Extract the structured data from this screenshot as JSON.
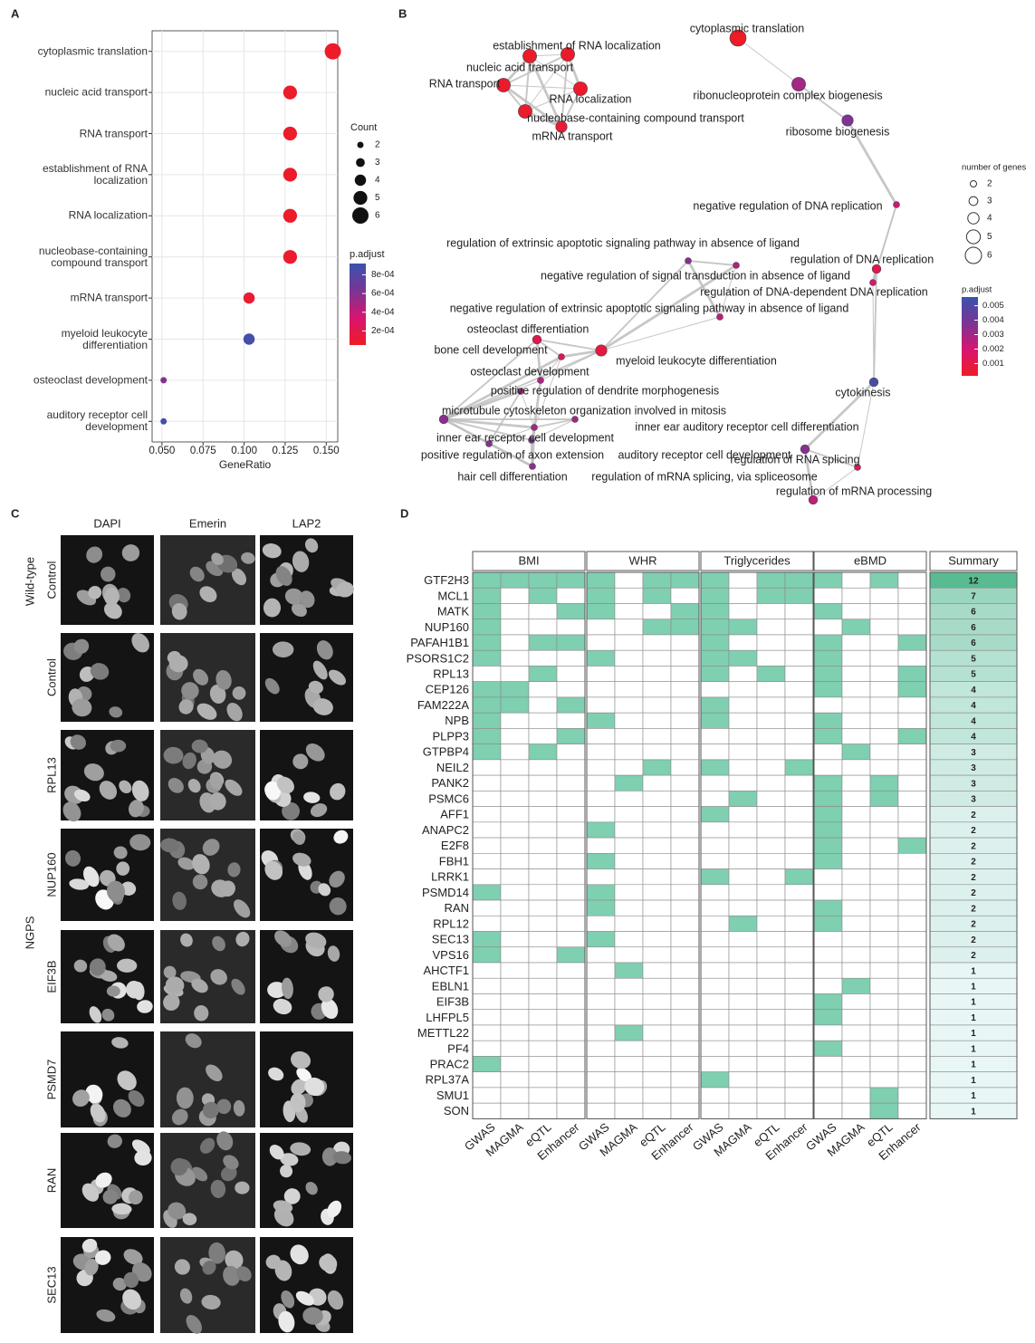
{
  "chart_data": {
    "type": "dot",
    "panel": "A",
    "categories": [
      "cytoplasmic translation",
      "nucleic acid transport",
      "RNA transport",
      "establishment of RNA localization",
      "RNA localization",
      "nucleobase-containing compound transport",
      "mRNA transport",
      "myeloid leukocyte differentiation",
      "osteoclast development",
      "auditory receptor cell development"
    ],
    "values": [
      0.154,
      0.128,
      0.128,
      0.128,
      0.128,
      0.128,
      0.103,
      0.103,
      0.051,
      0.051
    ],
    "count": [
      6,
      5,
      5,
      5,
      5,
      5,
      4,
      4,
      2,
      2
    ],
    "p_adjust": [
      6e-05,
      7e-05,
      7e-05,
      7e-05,
      7e-05,
      8e-05,
      0.0001,
      0.00088,
      0.0006,
      0.00088
    ],
    "xlabel": "GeneRatio",
    "xlim": [
      0.044,
      0.157
    ],
    "xticks": [
      {
        "value": 0.05,
        "label": "0.050"
      },
      {
        "value": 0.075,
        "label": "0.075"
      },
      {
        "value": 0.1,
        "label": "0.100"
      },
      {
        "value": 0.125,
        "label": "0.125"
      },
      {
        "value": 0.15,
        "label": "0.150"
      }
    ],
    "grid": true,
    "size_title": "Count",
    "size_ticks": [
      2,
      3,
      4,
      5,
      6
    ],
    "color_title": "p.adjust",
    "color_ticks": [
      {
        "value": 0.0008,
        "label": "8e-04"
      },
      {
        "value": 0.0006,
        "label": "6e-04"
      },
      {
        "value": 0.0004,
        "label": "4e-04"
      },
      {
        "value": 0.0002,
        "label": "2e-04"
      }
    ],
    "clim": [
      5e-05,
      0.00092
    ],
    "colors": [
      "#ee1c25",
      "#d8156f",
      "#7a3594",
      "#3b53ad"
    ]
  },
  "network": {
    "panel": "B",
    "nodes": [
      {
        "label": "cytoplasmic translation",
        "size": 6,
        "p_adjust": 0.0002
      },
      {
        "label": "establishment of RNA localization",
        "size": 5,
        "p_adjust": 0.0003
      },
      {
        "label": "nucleic acid transport",
        "size": 5,
        "p_adjust": 0.0003
      },
      {
        "label": "RNA transport",
        "size": 5,
        "p_adjust": 0.0003
      },
      {
        "label": "RNA localization",
        "size": 5,
        "p_adjust": 0.0003
      },
      {
        "label": "nucleobase-containing compound transport",
        "size": 5,
        "p_adjust": 0.0003
      },
      {
        "label": "mRNA transport",
        "size": 4,
        "p_adjust": 0.0006
      },
      {
        "label": "ribonucleoprotein complex biogenesis",
        "size": 5,
        "p_adjust": 0.003
      },
      {
        "label": "ribosome biogenesis",
        "size": 4,
        "p_adjust": 0.0037
      },
      {
        "label": "negative regulation of DNA replication",
        "size": 2,
        "p_adjust": 0.0022
      },
      {
        "label": "regulation of DNA replication",
        "size": 3,
        "p_adjust": 0.0012
      },
      {
        "label": "regulation of DNA-dependent DNA replication",
        "size": 2,
        "p_adjust": 0.002
      },
      {
        "label": "regulation of extrinsic apoptotic signaling pathway in absence of ligand",
        "size": 2,
        "p_adjust": 0.0035
      },
      {
        "label": "negative regulation of signal transduction in absence of ligand",
        "size": 2,
        "p_adjust": 0.0028
      },
      {
        "label": "negative regulation of extrinsic apoptotic signaling pathway in absence of ligand",
        "size": 2,
        "p_adjust": 0.0025
      },
      {
        "label": "osteoclast differentiation",
        "size": 3,
        "p_adjust": 0.0012
      },
      {
        "label": "bone cell development",
        "size": 2,
        "p_adjust": 0.0015
      },
      {
        "label": "myeloid leukocyte differentiation",
        "size": 4,
        "p_adjust": 0.0008
      },
      {
        "label": "osteoclast development",
        "size": 2,
        "p_adjust": 0.0028
      },
      {
        "label": "positive regulation of dendrite morphogenesis",
        "size": 2,
        "p_adjust": 0.003
      },
      {
        "label": "microtubule cytoskeleton organization involved in mitosis",
        "size": 3,
        "p_adjust": 0.0035
      },
      {
        "label": "inner ear auditory receptor cell differentiation",
        "size": 2,
        "p_adjust": 0.003
      },
      {
        "label": "inner ear receptor cell development",
        "size": 2,
        "p_adjust": 0.003
      },
      {
        "label": "positive regulation of axon extension",
        "size": 2,
        "p_adjust": 0.0035
      },
      {
        "label": "auditory receptor cell development",
        "size": 2,
        "p_adjust": 0.0038
      },
      {
        "label": "hair cell differentiation",
        "size": 2,
        "p_adjust": 0.0035
      },
      {
        "label": "regulation of mRNA splicing, via spliceosome",
        "size": 2,
        "p_adjust": 0.0015
      },
      {
        "label": "cytokinesis",
        "size": 3,
        "p_adjust": 0.0052
      },
      {
        "label": "regulation of RNA splicing",
        "size": 3,
        "p_adjust": 0.0035
      },
      {
        "label": "regulation of mRNA processing",
        "size": 3,
        "p_adjust": 0.0025
      }
    ],
    "size_title": "number of genes",
    "size_ticks": [
      2,
      3,
      4,
      5,
      6
    ],
    "color_title": "p.adjust",
    "color_ticks": [
      0.005,
      0.004,
      0.003,
      0.002,
      0.001
    ],
    "clim": [
      0.00015,
      0.0056
    ],
    "colors": [
      "#ee1c25",
      "#d8156f",
      "#7a3594",
      "#3b53ad"
    ]
  },
  "images": {
    "panel": "C",
    "columns": [
      "DAPI",
      "Emerin",
      "LAP2"
    ],
    "groups": [
      "Wild-type",
      "NGPS"
    ],
    "rows": [
      "Control",
      "Control",
      "RPL13",
      "NUP160",
      "EIF3B",
      "PSMD7",
      "RAN",
      "SEC13"
    ]
  },
  "heatmap": {
    "panel": "D",
    "groups": [
      "BMI",
      "WHR",
      "Triglycerides",
      "eBMD"
    ],
    "columns": [
      "GWAS",
      "MAGMA",
      "eQTL",
      "Enhancer"
    ],
    "summary_title": "Summary",
    "color": "#7fcfb1",
    "summary_colors": [
      "#e9f6f6",
      "#58bb91"
    ],
    "genes": [
      "GTF2H3",
      "MCL1",
      "MATK",
      "NUP160",
      "PAFAH1B1",
      "PSORS1C2",
      "RPL13",
      "CEP126",
      "FAM222A",
      "NPB",
      "PLPP3",
      "GTPBP4",
      "NEIL2",
      "PANK2",
      "PSMC6",
      "AFF1",
      "ANAPC2",
      "E2F8",
      "FBH1",
      "LRRK1",
      "PSMD14",
      "RAN",
      "RPL12",
      "SEC13",
      "VPS16",
      "AHCTF1",
      "EBLN1",
      "EIF3B",
      "LHFPL5",
      "METTL22",
      "PF4",
      "PRAC2",
      "RPL37A",
      "SMU1",
      "SON"
    ],
    "matrix": [
      [
        1,
        1,
        1,
        1,
        1,
        0,
        1,
        1,
        1,
        0,
        1,
        1,
        1,
        0,
        1,
        0
      ],
      [
        1,
        0,
        1,
        0,
        1,
        0,
        1,
        0,
        1,
        0,
        1,
        1,
        0,
        0,
        0,
        0
      ],
      [
        1,
        0,
        0,
        1,
        1,
        0,
        0,
        1,
        1,
        0,
        0,
        0,
        1,
        0,
        0,
        0
      ],
      [
        1,
        0,
        0,
        0,
        0,
        0,
        1,
        1,
        1,
        1,
        0,
        0,
        0,
        1,
        0,
        0
      ],
      [
        1,
        0,
        1,
        1,
        0,
        0,
        0,
        0,
        1,
        0,
        0,
        0,
        1,
        0,
        0,
        1
      ],
      [
        1,
        0,
        0,
        0,
        1,
        0,
        0,
        0,
        1,
        1,
        0,
        0,
        1,
        0,
        0,
        0
      ],
      [
        0,
        0,
        1,
        0,
        0,
        0,
        0,
        0,
        1,
        0,
        1,
        0,
        1,
        0,
        0,
        1
      ],
      [
        1,
        1,
        0,
        0,
        0,
        0,
        0,
        0,
        0,
        0,
        0,
        0,
        1,
        0,
        0,
        1
      ],
      [
        1,
        1,
        0,
        1,
        0,
        0,
        0,
        0,
        1,
        0,
        0,
        0,
        0,
        0,
        0,
        0
      ],
      [
        1,
        0,
        0,
        0,
        1,
        0,
        0,
        0,
        1,
        0,
        0,
        0,
        1,
        0,
        0,
        0
      ],
      [
        1,
        0,
        0,
        1,
        0,
        0,
        0,
        0,
        0,
        0,
        0,
        0,
        1,
        0,
        0,
        1
      ],
      [
        1,
        0,
        1,
        0,
        0,
        0,
        0,
        0,
        0,
        0,
        0,
        0,
        0,
        1,
        0,
        0
      ],
      [
        0,
        0,
        0,
        0,
        0,
        0,
        1,
        0,
        1,
        0,
        0,
        1,
        0,
        0,
        0,
        0
      ],
      [
        0,
        0,
        0,
        0,
        0,
        1,
        0,
        0,
        0,
        0,
        0,
        0,
        1,
        0,
        1,
        0
      ],
      [
        0,
        0,
        0,
        0,
        0,
        0,
        0,
        0,
        0,
        1,
        0,
        0,
        1,
        0,
        1,
        0
      ],
      [
        0,
        0,
        0,
        0,
        0,
        0,
        0,
        0,
        1,
        0,
        0,
        0,
        1,
        0,
        0,
        0
      ],
      [
        0,
        0,
        0,
        0,
        1,
        0,
        0,
        0,
        0,
        0,
        0,
        0,
        1,
        0,
        0,
        0
      ],
      [
        0,
        0,
        0,
        0,
        0,
        0,
        0,
        0,
        0,
        0,
        0,
        0,
        1,
        0,
        0,
        1
      ],
      [
        0,
        0,
        0,
        0,
        1,
        0,
        0,
        0,
        0,
        0,
        0,
        0,
        1,
        0,
        0,
        0
      ],
      [
        0,
        0,
        0,
        0,
        0,
        0,
        0,
        0,
        1,
        0,
        0,
        1,
        0,
        0,
        0,
        0
      ],
      [
        1,
        0,
        0,
        0,
        1,
        0,
        0,
        0,
        0,
        0,
        0,
        0,
        0,
        0,
        0,
        0
      ],
      [
        0,
        0,
        0,
        0,
        1,
        0,
        0,
        0,
        0,
        0,
        0,
        0,
        1,
        0,
        0,
        0
      ],
      [
        0,
        0,
        0,
        0,
        0,
        0,
        0,
        0,
        0,
        1,
        0,
        0,
        1,
        0,
        0,
        0
      ],
      [
        1,
        0,
        0,
        0,
        1,
        0,
        0,
        0,
        0,
        0,
        0,
        0,
        0,
        0,
        0,
        0
      ],
      [
        1,
        0,
        0,
        1,
        0,
        0,
        0,
        0,
        0,
        0,
        0,
        0,
        0,
        0,
        0,
        0
      ],
      [
        0,
        0,
        0,
        0,
        0,
        1,
        0,
        0,
        0,
        0,
        0,
        0,
        0,
        0,
        0,
        0
      ],
      [
        0,
        0,
        0,
        0,
        0,
        0,
        0,
        0,
        0,
        0,
        0,
        0,
        0,
        1,
        0,
        0
      ],
      [
        0,
        0,
        0,
        0,
        0,
        0,
        0,
        0,
        0,
        0,
        0,
        0,
        1,
        0,
        0,
        0
      ],
      [
        0,
        0,
        0,
        0,
        0,
        0,
        0,
        0,
        0,
        0,
        0,
        0,
        1,
        0,
        0,
        0
      ],
      [
        0,
        0,
        0,
        0,
        0,
        1,
        0,
        0,
        0,
        0,
        0,
        0,
        0,
        0,
        0,
        0
      ],
      [
        0,
        0,
        0,
        0,
        0,
        0,
        0,
        0,
        0,
        0,
        0,
        0,
        1,
        0,
        0,
        0
      ],
      [
        1,
        0,
        0,
        0,
        0,
        0,
        0,
        0,
        0,
        0,
        0,
        0,
        0,
        0,
        0,
        0
      ],
      [
        0,
        0,
        0,
        0,
        0,
        0,
        0,
        0,
        1,
        0,
        0,
        0,
        0,
        0,
        0,
        0
      ],
      [
        0,
        0,
        0,
        0,
        0,
        0,
        0,
        0,
        0,
        0,
        0,
        0,
        0,
        0,
        1,
        0
      ],
      [
        0,
        0,
        0,
        0,
        0,
        0,
        0,
        0,
        0,
        0,
        0,
        0,
        0,
        0,
        1,
        0
      ]
    ],
    "summary": [
      12,
      7,
      6,
      6,
      6,
      5,
      5,
      4,
      4,
      4,
      4,
      3,
      3,
      3,
      3,
      2,
      2,
      2,
      2,
      2,
      2,
      2,
      2,
      2,
      2,
      1,
      1,
      1,
      1,
      1,
      1,
      1,
      1,
      1,
      1
    ]
  }
}
